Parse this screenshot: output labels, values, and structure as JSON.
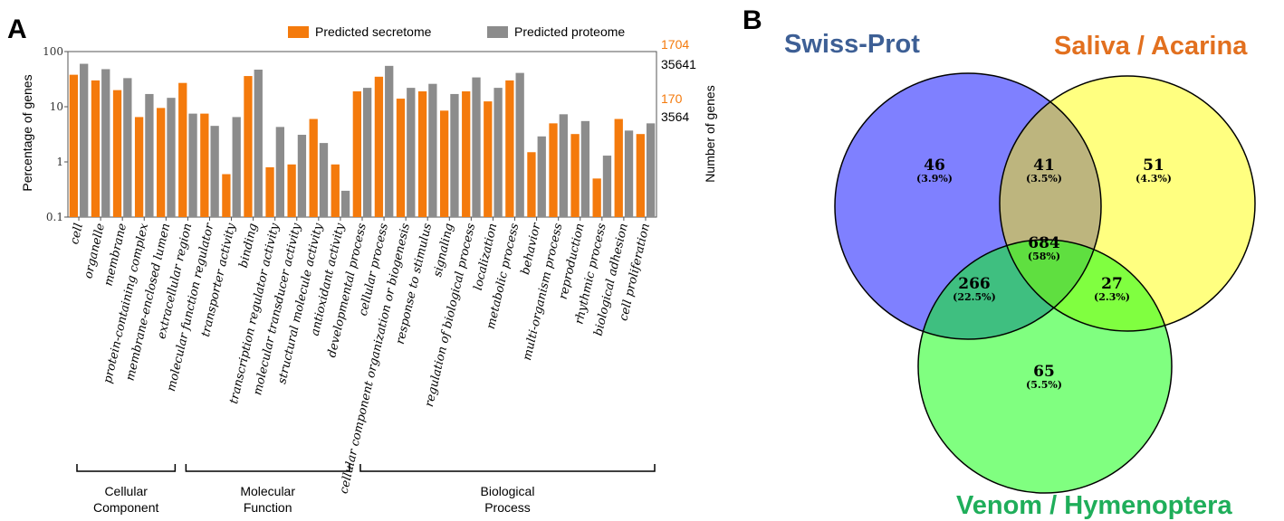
{
  "panels": {
    "a_label": "A",
    "b_label": "B"
  },
  "chart_data": [
    {
      "type": "bar",
      "panel": "A",
      "ylabel": "Percentage of genes",
      "ylabel_right": "Number of genes",
      "yscale": "log",
      "ylim": [
        0.1,
        100
      ],
      "yticks": [
        "100",
        "10",
        "1",
        "0.1"
      ],
      "right_ticks": {
        "secretome": [
          "1704",
          "170"
        ],
        "proteome": [
          "35641",
          "3564"
        ]
      },
      "legend_position": "top-right",
      "categories": [
        "cell",
        "organelle",
        "membrane",
        "protein-containing complex",
        "membrane-enclosed lumen",
        "extracellular region",
        "molecular function regulator",
        "transporter activity",
        "binding",
        "transcription regulator activity",
        "molecular transducer activity",
        "structural molecule activity",
        "antioxidant activity",
        "developmental process",
        "cellular process",
        "cellular component organization or biogenesis",
        "response to stimulus",
        "signaling",
        "regulation of biological process",
        "localization",
        "metabolic process",
        "behavior",
        "multi-organism process",
        "reproduction",
        "rhythmic process",
        "biological adhesion",
        "cell proliferation"
      ],
      "series": [
        {
          "name": "Predicted secretome",
          "color": "#f47a0c",
          "values": [
            38,
            30,
            20,
            6.5,
            9.5,
            27,
            7.5,
            0.6,
            36,
            0.8,
            0.9,
            6,
            0.9,
            19,
            35,
            14,
            19,
            8.5,
            19,
            12.5,
            30,
            1.5,
            5,
            3.2,
            0.5,
            6,
            3.2
          ]
        },
        {
          "name": "Predicted proteome",
          "color": "#8c8c8c",
          "values": [
            60,
            48,
            33,
            17,
            14.5,
            7.5,
            4.5,
            6.5,
            47,
            4.3,
            3.1,
            2.2,
            0.3,
            22,
            55,
            22,
            26,
            17,
            34,
            22,
            41,
            2.9,
            7.3,
            5.5,
            1.3,
            3.7,
            5
          ]
        }
      ],
      "groups": [
        {
          "label_line1": "Cellular",
          "label_line2": "Component",
          "from": 0,
          "to": 4
        },
        {
          "label_line1": "Molecular",
          "label_line2": "Function",
          "from": 5,
          "to": 12
        },
        {
          "label_line1": "Biological",
          "label_line2": "Process",
          "from": 13,
          "to": 26
        }
      ]
    },
    {
      "type": "venn",
      "panel": "B",
      "sets": [
        {
          "name": "Swiss-Prot",
          "fill": "#7f80ff",
          "label_color": "#3d5f95"
        },
        {
          "name": "Saliva / Acarina",
          "fill": "#ffff80",
          "label_color": "#e2701f"
        },
        {
          "name": "Venom / Hymenoptera",
          "fill": "#80ff80",
          "label_color": "#1fae5a"
        }
      ],
      "regions": [
        {
          "sets": [
            "Swiss-Prot"
          ],
          "count": "46",
          "percent": "(3.9%)"
        },
        {
          "sets": [
            "Swiss-Prot",
            "Saliva / Acarina"
          ],
          "count": "41",
          "percent": "(3.5%)"
        },
        {
          "sets": [
            "Saliva / Acarina"
          ],
          "count": "51",
          "percent": "(4.3%)"
        },
        {
          "sets": [
            "Swiss-Prot",
            "Saliva / Acarina",
            "Venom / Hymenoptera"
          ],
          "count": "684",
          "percent": "(58%)"
        },
        {
          "sets": [
            "Swiss-Prot",
            "Venom / Hymenoptera"
          ],
          "count": "266",
          "percent": "(22.5%)"
        },
        {
          "sets": [
            "Saliva / Acarina",
            "Venom / Hymenoptera"
          ],
          "count": "27",
          "percent": "(2.3%)"
        },
        {
          "sets": [
            "Venom / Hymenoptera"
          ],
          "count": "65",
          "percent": "(5.5%)"
        }
      ],
      "region_colors": {
        "ab": "#bdb57e",
        "ac": "#3fbf80",
        "bc": "#80ff40",
        "abc": "#5fdf40"
      }
    }
  ]
}
